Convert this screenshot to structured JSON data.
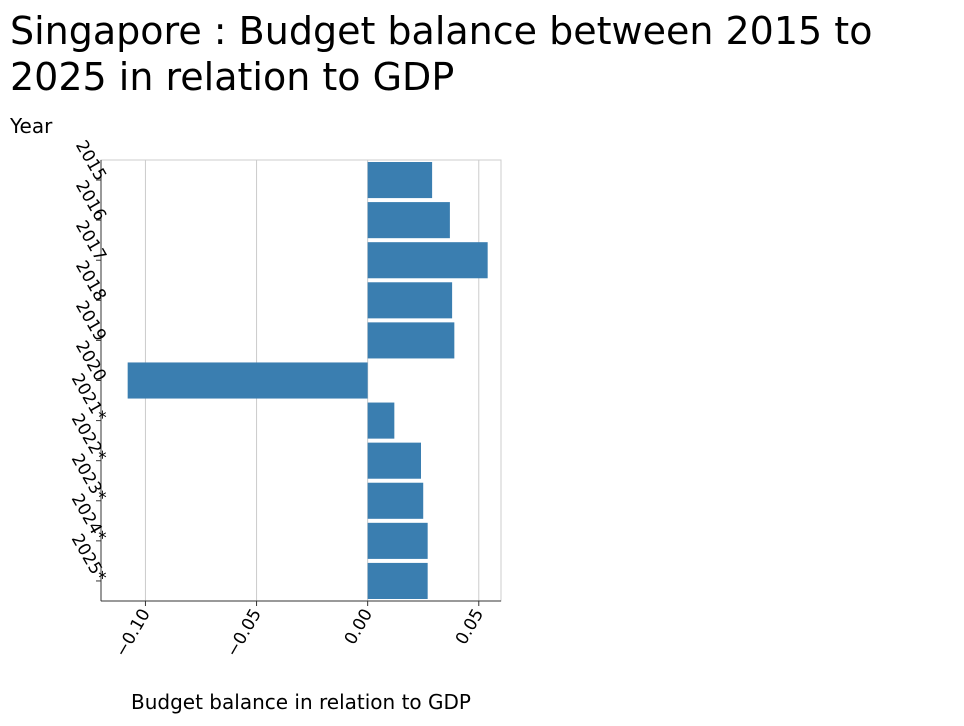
{
  "chart_data": {
    "type": "bar",
    "orientation": "horizontal",
    "title": "Singapore : Budget balance between 2015 to 2025 in relation to GDP",
    "xlabel": "Budget balance in relation to GDP",
    "ylabel": "Year",
    "categories": [
      "2015",
      "2016",
      "2017",
      "2018",
      "2019",
      "2020",
      "2021*",
      "2022*",
      "2023*",
      "2024*",
      "2025*"
    ],
    "values": [
      0.029,
      0.037,
      0.054,
      0.038,
      0.039,
      -0.108,
      0.012,
      0.024,
      0.025,
      0.027,
      0.027
    ],
    "xlim": [
      -0.12,
      0.06
    ],
    "xticks": [
      -0.1,
      -0.05,
      0.0,
      0.05
    ],
    "xtick_labels": [
      "−0.10",
      "−0.05",
      "0.00",
      "0.05"
    ],
    "grid": "vertical",
    "bar_color": "#3a7eb0"
  }
}
